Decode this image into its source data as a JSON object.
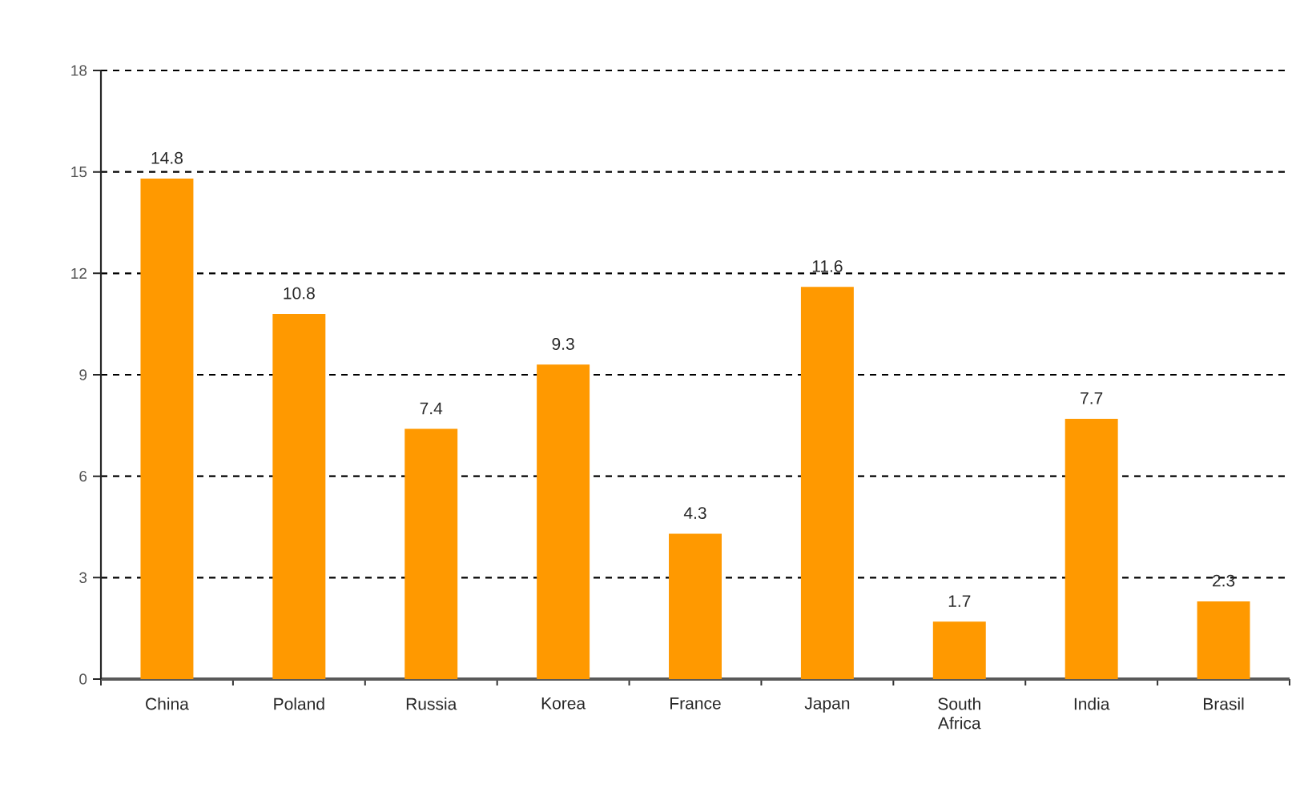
{
  "chart_data": {
    "type": "bar",
    "categories": [
      "China",
      "Poland",
      "Russia",
      "Korea",
      "France",
      "Japan",
      "South Africa",
      "India",
      "Brasil"
    ],
    "values": [
      14.8,
      10.8,
      7.4,
      9.3,
      4.3,
      11.6,
      1.7,
      7.7,
      2.3
    ],
    "color": "#ff9900",
    "ylim": [
      0,
      18
    ],
    "yticks": [
      0,
      3,
      6,
      9,
      12,
      15,
      18
    ],
    "grid": "y",
    "data_labels": true
  }
}
